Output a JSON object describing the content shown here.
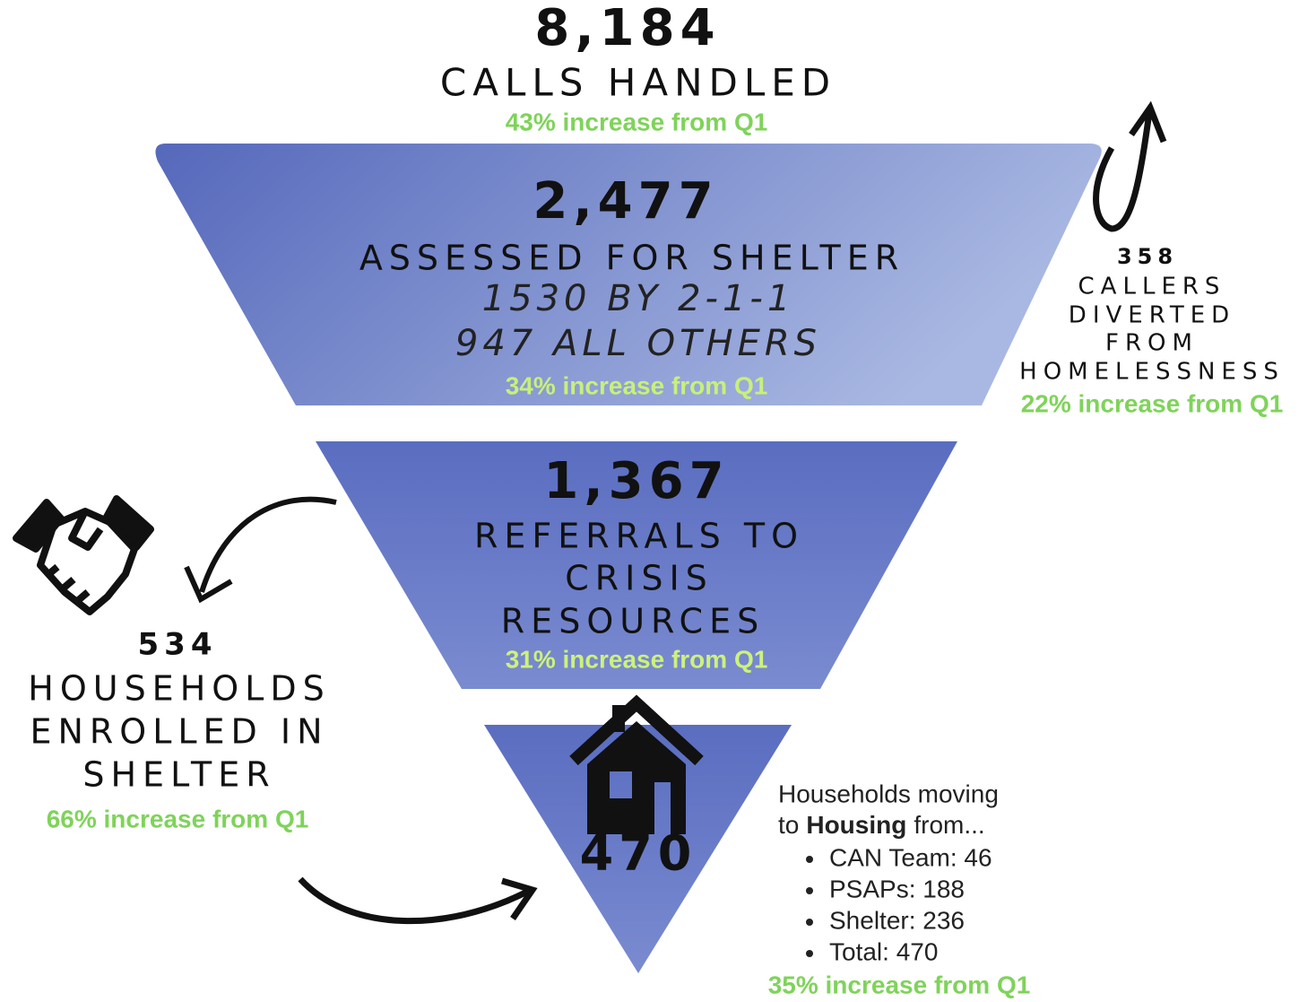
{
  "calls": {
    "number": "8,184",
    "label": "CALLS HANDLED",
    "change": "43% increase from Q1"
  },
  "assessed": {
    "number": "2,477",
    "label": "ASSESSED FOR SHELTER",
    "details": [
      "1530 BY 2-1-1",
      "947 ALL OTHERS"
    ],
    "change": "34% increase from Q1"
  },
  "referrals": {
    "number": "1,367",
    "label_lines": [
      "REFERRALS TO",
      "CRISIS",
      "RESOURCES"
    ],
    "change": "31% increase from Q1"
  },
  "diverted": {
    "number": "358",
    "label_lines": [
      "CALLERS",
      "DIVERTED",
      "FROM",
      "HOMELESSNESS"
    ],
    "change": "22% increase from Q1"
  },
  "shelter": {
    "number": "534",
    "label_lines": [
      "HOUSEHOLDS",
      "ENROLLED IN",
      "SHELTER"
    ],
    "change": "66% increase from Q1"
  },
  "housing": {
    "number": "470",
    "intro": [
      "Households moving",
      "to",
      "Housing",
      "from..."
    ],
    "sources": [
      "CAN Team: 46",
      "PSAPs: 188",
      "Shelter: 236",
      "Total: 470"
    ],
    "change": "35% increase from Q1"
  }
}
